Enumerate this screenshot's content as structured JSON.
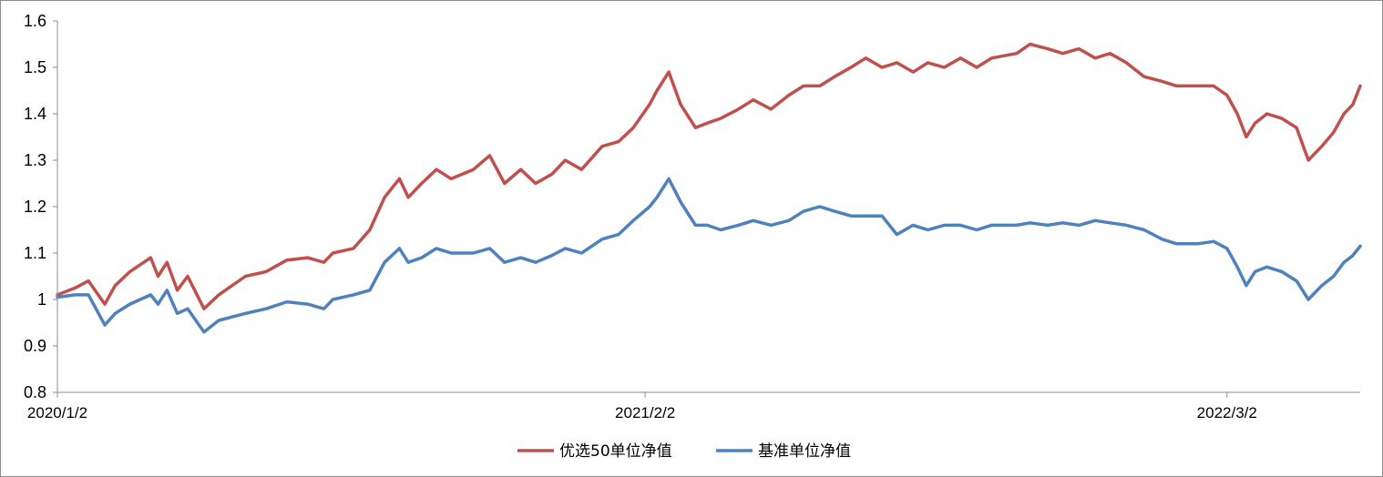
{
  "chart_data": {
    "type": "line",
    "title": "",
    "xlabel": "",
    "ylabel": "",
    "ylim": [
      0.8,
      1.6
    ],
    "yticks": [
      "0.8",
      "0.9",
      "1",
      "1.1",
      "1.2",
      "1.3",
      "1.4",
      "1.5",
      "1.6"
    ],
    "x_range": [
      "2020/1/2",
      "2022/5/31"
    ],
    "xticks": [
      {
        "date": "2020/1/2",
        "label": "2020/1/2"
      },
      {
        "date": "2021/2/2",
        "label": "2021/2/2"
      },
      {
        "date": "2022/3/2",
        "label": "2022/3/2"
      }
    ],
    "grid": false,
    "legend_position": "bottom-center",
    "series": [
      {
        "name": "优选50单位净值",
        "color": "#c0504d",
        "points": [
          [
            "2020/1/2",
            1.01
          ],
          [
            "2020/1/14",
            1.025
          ],
          [
            "2020/1/23",
            1.04
          ],
          [
            "2020/2/3",
            0.99
          ],
          [
            "2020/2/10",
            1.03
          ],
          [
            "2020/2/20",
            1.06
          ],
          [
            "2020/3/5",
            1.09
          ],
          [
            "2020/3/10",
            1.05
          ],
          [
            "2020/3/16",
            1.08
          ],
          [
            "2020/3/23",
            1.02
          ],
          [
            "2020/3/30",
            1.05
          ],
          [
            "2020/4/10",
            0.98
          ],
          [
            "2020/4/20",
            1.01
          ],
          [
            "2020/5/8",
            1.05
          ],
          [
            "2020/5/22",
            1.06
          ],
          [
            "2020/6/5",
            1.085
          ],
          [
            "2020/6/19",
            1.09
          ],
          [
            "2020/6/30",
            1.08
          ],
          [
            "2020/7/6",
            1.1
          ],
          [
            "2020/7/20",
            1.11
          ],
          [
            "2020/7/31",
            1.15
          ],
          [
            "2020/8/10",
            1.22
          ],
          [
            "2020/8/20",
            1.26
          ],
          [
            "2020/8/26",
            1.22
          ],
          [
            "2020/9/4",
            1.25
          ],
          [
            "2020/9/14",
            1.28
          ],
          [
            "2020/9/24",
            1.26
          ],
          [
            "2020/10/9",
            1.28
          ],
          [
            "2020/10/20",
            1.31
          ],
          [
            "2020/10/30",
            1.25
          ],
          [
            "2020/11/10",
            1.28
          ],
          [
            "2020/11/20",
            1.25
          ],
          [
            "2020/12/1",
            1.27
          ],
          [
            "2020/12/10",
            1.3
          ],
          [
            "2020/12/21",
            1.28
          ],
          [
            "2021/1/4",
            1.33
          ],
          [
            "2021/1/15",
            1.34
          ],
          [
            "2021/1/25",
            1.37
          ],
          [
            "2021/2/5",
            1.42
          ],
          [
            "2021/2/10",
            1.45
          ],
          [
            "2021/2/18",
            1.49
          ],
          [
            "2021/2/26",
            1.42
          ],
          [
            "2021/3/8",
            1.37
          ],
          [
            "2021/3/16",
            1.38
          ],
          [
            "2021/3/25",
            1.39
          ],
          [
            "2021/4/6",
            1.41
          ],
          [
            "2021/4/16",
            1.43
          ],
          [
            "2021/4/28",
            1.41
          ],
          [
            "2021/5/10",
            1.44
          ],
          [
            "2021/5/20",
            1.46
          ],
          [
            "2021/5/31",
            1.46
          ],
          [
            "2021/6/10",
            1.48
          ],
          [
            "2021/6/21",
            1.5
          ],
          [
            "2021/7/1",
            1.52
          ],
          [
            "2021/7/12",
            1.5
          ],
          [
            "2021/7/22",
            1.51
          ],
          [
            "2021/8/2",
            1.49
          ],
          [
            "2021/8/12",
            1.51
          ],
          [
            "2021/8/23",
            1.5
          ],
          [
            "2021/9/3",
            1.52
          ],
          [
            "2021/9/14",
            1.5
          ],
          [
            "2021/9/24",
            1.52
          ],
          [
            "2021/10/11",
            1.53
          ],
          [
            "2021/10/20",
            1.55
          ],
          [
            "2021/11/1",
            1.54
          ],
          [
            "2021/11/11",
            1.53
          ],
          [
            "2021/11/22",
            1.54
          ],
          [
            "2021/12/3",
            1.52
          ],
          [
            "2021/12/13",
            1.53
          ],
          [
            "2021/12/24",
            1.51
          ],
          [
            "2022/1/5",
            1.48
          ],
          [
            "2022/1/17",
            1.47
          ],
          [
            "2022/1/27",
            1.46
          ],
          [
            "2022/2/10",
            1.46
          ],
          [
            "2022/2/21",
            1.46
          ],
          [
            "2022/3/2",
            1.44
          ],
          [
            "2022/3/9",
            1.4
          ],
          [
            "2022/3/15",
            1.35
          ],
          [
            "2022/3/21",
            1.38
          ],
          [
            "2022/3/29",
            1.4
          ],
          [
            "2022/4/8",
            1.39
          ],
          [
            "2022/4/18",
            1.37
          ],
          [
            "2022/4/26",
            1.3
          ],
          [
            "2022/5/5",
            1.33
          ],
          [
            "2022/5/13",
            1.36
          ],
          [
            "2022/5/20",
            1.4
          ],
          [
            "2022/5/26",
            1.42
          ],
          [
            "2022/5/31",
            1.46
          ]
        ]
      },
      {
        "name": "基准单位净值",
        "color": "#4f81bd",
        "points": [
          [
            "2020/1/2",
            1.005
          ],
          [
            "2020/1/14",
            1.01
          ],
          [
            "2020/1/23",
            1.01
          ],
          [
            "2020/2/3",
            0.945
          ],
          [
            "2020/2/10",
            0.97
          ],
          [
            "2020/2/20",
            0.99
          ],
          [
            "2020/3/5",
            1.01
          ],
          [
            "2020/3/10",
            0.99
          ],
          [
            "2020/3/16",
            1.02
          ],
          [
            "2020/3/23",
            0.97
          ],
          [
            "2020/3/30",
            0.98
          ],
          [
            "2020/4/10",
            0.93
          ],
          [
            "2020/4/20",
            0.955
          ],
          [
            "2020/5/8",
            0.97
          ],
          [
            "2020/5/22",
            0.98
          ],
          [
            "2020/6/5",
            0.995
          ],
          [
            "2020/6/19",
            0.99
          ],
          [
            "2020/6/30",
            0.98
          ],
          [
            "2020/7/6",
            1.0
          ],
          [
            "2020/7/20",
            1.01
          ],
          [
            "2020/7/31",
            1.02
          ],
          [
            "2020/8/10",
            1.08
          ],
          [
            "2020/8/20",
            1.11
          ],
          [
            "2020/8/26",
            1.08
          ],
          [
            "2020/9/4",
            1.09
          ],
          [
            "2020/9/14",
            1.11
          ],
          [
            "2020/9/24",
            1.1
          ],
          [
            "2020/10/9",
            1.1
          ],
          [
            "2020/10/20",
            1.11
          ],
          [
            "2020/10/30",
            1.08
          ],
          [
            "2020/11/10",
            1.09
          ],
          [
            "2020/11/20",
            1.08
          ],
          [
            "2020/12/1",
            1.095
          ],
          [
            "2020/12/10",
            1.11
          ],
          [
            "2020/12/21",
            1.1
          ],
          [
            "2021/1/4",
            1.13
          ],
          [
            "2021/1/15",
            1.14
          ],
          [
            "2021/1/25",
            1.17
          ],
          [
            "2021/2/5",
            1.2
          ],
          [
            "2021/2/10",
            1.22
          ],
          [
            "2021/2/18",
            1.26
          ],
          [
            "2021/2/26",
            1.21
          ],
          [
            "2021/3/8",
            1.16
          ],
          [
            "2021/3/16",
            1.16
          ],
          [
            "2021/3/25",
            1.15
          ],
          [
            "2021/4/6",
            1.16
          ],
          [
            "2021/4/16",
            1.17
          ],
          [
            "2021/4/28",
            1.16
          ],
          [
            "2021/5/10",
            1.17
          ],
          [
            "2021/5/20",
            1.19
          ],
          [
            "2021/5/31",
            1.2
          ],
          [
            "2021/6/10",
            1.19
          ],
          [
            "2021/6/21",
            1.18
          ],
          [
            "2021/7/1",
            1.18
          ],
          [
            "2021/7/12",
            1.18
          ],
          [
            "2021/7/22",
            1.14
          ],
          [
            "2021/8/2",
            1.16
          ],
          [
            "2021/8/12",
            1.15
          ],
          [
            "2021/8/23",
            1.16
          ],
          [
            "2021/9/3",
            1.16
          ],
          [
            "2021/9/14",
            1.15
          ],
          [
            "2021/9/24",
            1.16
          ],
          [
            "2021/10/11",
            1.16
          ],
          [
            "2021/10/20",
            1.165
          ],
          [
            "2021/11/1",
            1.16
          ],
          [
            "2021/11/11",
            1.165
          ],
          [
            "2021/11/22",
            1.16
          ],
          [
            "2021/12/3",
            1.17
          ],
          [
            "2021/12/13",
            1.165
          ],
          [
            "2021/12/24",
            1.16
          ],
          [
            "2022/1/5",
            1.15
          ],
          [
            "2022/1/17",
            1.13
          ],
          [
            "2022/1/27",
            1.12
          ],
          [
            "2022/2/10",
            1.12
          ],
          [
            "2022/2/21",
            1.125
          ],
          [
            "2022/3/2",
            1.11
          ],
          [
            "2022/3/9",
            1.07
          ],
          [
            "2022/3/15",
            1.03
          ],
          [
            "2022/3/21",
            1.06
          ],
          [
            "2022/3/29",
            1.07
          ],
          [
            "2022/4/8",
            1.06
          ],
          [
            "2022/4/18",
            1.04
          ],
          [
            "2022/4/26",
            1.0
          ],
          [
            "2022/5/5",
            1.03
          ],
          [
            "2022/5/13",
            1.05
          ],
          [
            "2022/5/20",
            1.08
          ],
          [
            "2022/5/26",
            1.095
          ],
          [
            "2022/5/31",
            1.115
          ]
        ]
      }
    ]
  }
}
